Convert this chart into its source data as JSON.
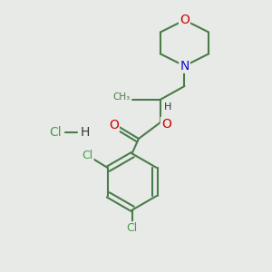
{
  "background_color": "#e8eae8",
  "figure_size": [
    3.0,
    3.0
  ],
  "dpi": 100,
  "bond_color": "#4a7c4a",
  "bond_width": 1.5,
  "atom_colors": {
    "O": "#cc0000",
    "N": "#1010cc",
    "Cl": "#4a9c4a",
    "H": "#333333",
    "C": "#333333"
  },
  "font_size": 9
}
